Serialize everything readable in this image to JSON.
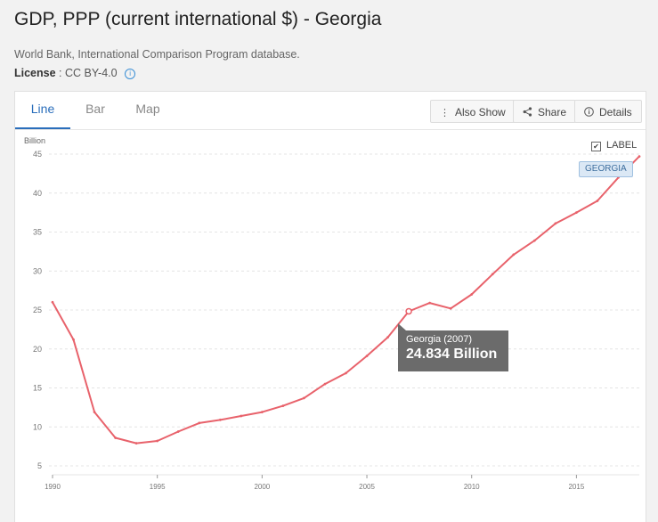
{
  "header": {
    "title": "GDP, PPP (current international $) - Georgia",
    "source": "World Bank, International Comparison Program database.",
    "license_label": "License",
    "license_value": ": CC BY-4.0"
  },
  "tabs": [
    {
      "label": "Line",
      "active": true
    },
    {
      "label": "Bar",
      "active": false
    },
    {
      "label": "Map",
      "active": false
    }
  ],
  "toolbar": {
    "also_show": "Also Show",
    "share": "Share",
    "details": "Details"
  },
  "legend": {
    "label_toggle": "LABEL",
    "series_tag": "GEORGIA"
  },
  "tooltip": {
    "name": "Georgia (2007)",
    "value": "24.834 Billion"
  },
  "colors": {
    "series": "#e8626b",
    "accent": "#2a6ebb"
  },
  "chart_data": {
    "type": "line",
    "ylabel": "Billion",
    "xlim": [
      1990,
      2018
    ],
    "ylim": [
      5,
      45
    ],
    "yticks": [
      5,
      10,
      15,
      20,
      25,
      30,
      35,
      40,
      45
    ],
    "xticks": [
      1990,
      1995,
      2000,
      2005,
      2010,
      2015
    ],
    "grid": true,
    "highlight_x": 2007,
    "x": [
      1990,
      1991,
      1992,
      1993,
      1994,
      1995,
      1996,
      1997,
      1998,
      1999,
      2000,
      2001,
      2002,
      2003,
      2004,
      2005,
      2006,
      2007,
      2008,
      2009,
      2010,
      2011,
      2012,
      2013,
      2014,
      2015,
      2016,
      2017,
      2018
    ],
    "series": [
      {
        "name": "Georgia",
        "values": [
          26.0,
          21.2,
          11.9,
          8.6,
          7.9,
          8.2,
          9.4,
          10.5,
          10.9,
          11.4,
          11.9,
          12.7,
          13.7,
          15.5,
          16.9,
          19.1,
          21.5,
          24.834,
          25.9,
          25.2,
          27.0,
          29.6,
          32.1,
          33.9,
          36.1,
          37.5,
          39.0,
          42.0,
          44.7
        ]
      }
    ]
  }
}
